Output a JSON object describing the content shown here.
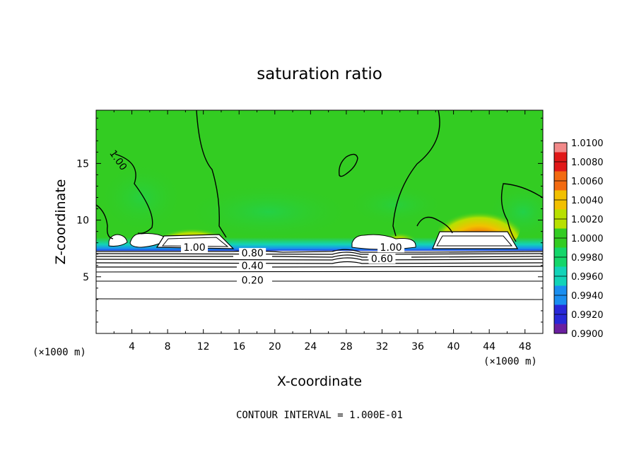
{
  "chart_data": {
    "type": "heatmap",
    "title": "saturation ratio",
    "xlabel": "X-coordinate",
    "ylabel": "Z-coordinate",
    "x_unit": "(×1000 m)",
    "xlim": [
      0,
      50
    ],
    "ylim": [
      0,
      19.7
    ],
    "x_ticks": [
      4,
      8,
      12,
      16,
      20,
      24,
      28,
      32,
      36,
      40,
      44,
      48
    ],
    "y_ticks": [
      5,
      10,
      15
    ],
    "footer": "CONTOUR INTERVAL = 1.000E-01",
    "colorbar": {
      "levels": [
        "1.0100",
        "1.0080",
        "1.0060",
        "1.0040",
        "1.0020",
        "1.0000",
        "0.9980",
        "0.9960",
        "0.9940",
        "0.9920",
        "0.9900"
      ],
      "colors": [
        "#f28a8a",
        "#e01818",
        "#f26a10",
        "#f2c000",
        "#b8e000",
        "#33cc22",
        "#14d66a",
        "#12d3b8",
        "#1a8ef0",
        "#2828d8",
        "#6a1fa0"
      ],
      "range": [
        0.99,
        1.01
      ],
      "placement": "right"
    },
    "contour_labels": [
      {
        "text": "1.00",
        "x": 2.5,
        "z": 15.3,
        "angle": 55
      },
      {
        "text": "1.00",
        "x": 11.0,
        "z": 7.6,
        "angle": 0
      },
      {
        "text": "0.80",
        "x": 17.5,
        "z": 7.1,
        "angle": 0
      },
      {
        "text": "0.40",
        "x": 17.5,
        "z": 6.0,
        "angle": 0
      },
      {
        "text": "0.20",
        "x": 17.5,
        "z": 4.7,
        "angle": 0
      },
      {
        "text": "1.00",
        "x": 33.0,
        "z": 7.6,
        "angle": 0
      },
      {
        "text": "0.60",
        "x": 32.0,
        "z": 6.6,
        "angle": 0
      }
    ],
    "cloud_regions": [
      {
        "x": [
          1.5,
          3.3
        ],
        "z_top": 8.7,
        "z_bottom": 7.8
      },
      {
        "x": [
          7.5,
          15.0
        ],
        "z_top": 8.9,
        "z_bottom": 7.5
      },
      {
        "x": [
          29.0,
          36.0
        ],
        "z_top": 8.6,
        "z_bottom": 7.5
      },
      {
        "x": [
          38.0,
          46.0
        ],
        "z_top": 9.2,
        "z_bottom": 7.5
      }
    ],
    "field_description_values": {
      "upper_region_value": 1.0,
      "max_value": 1.01,
      "min_value": 0.99
    }
  }
}
